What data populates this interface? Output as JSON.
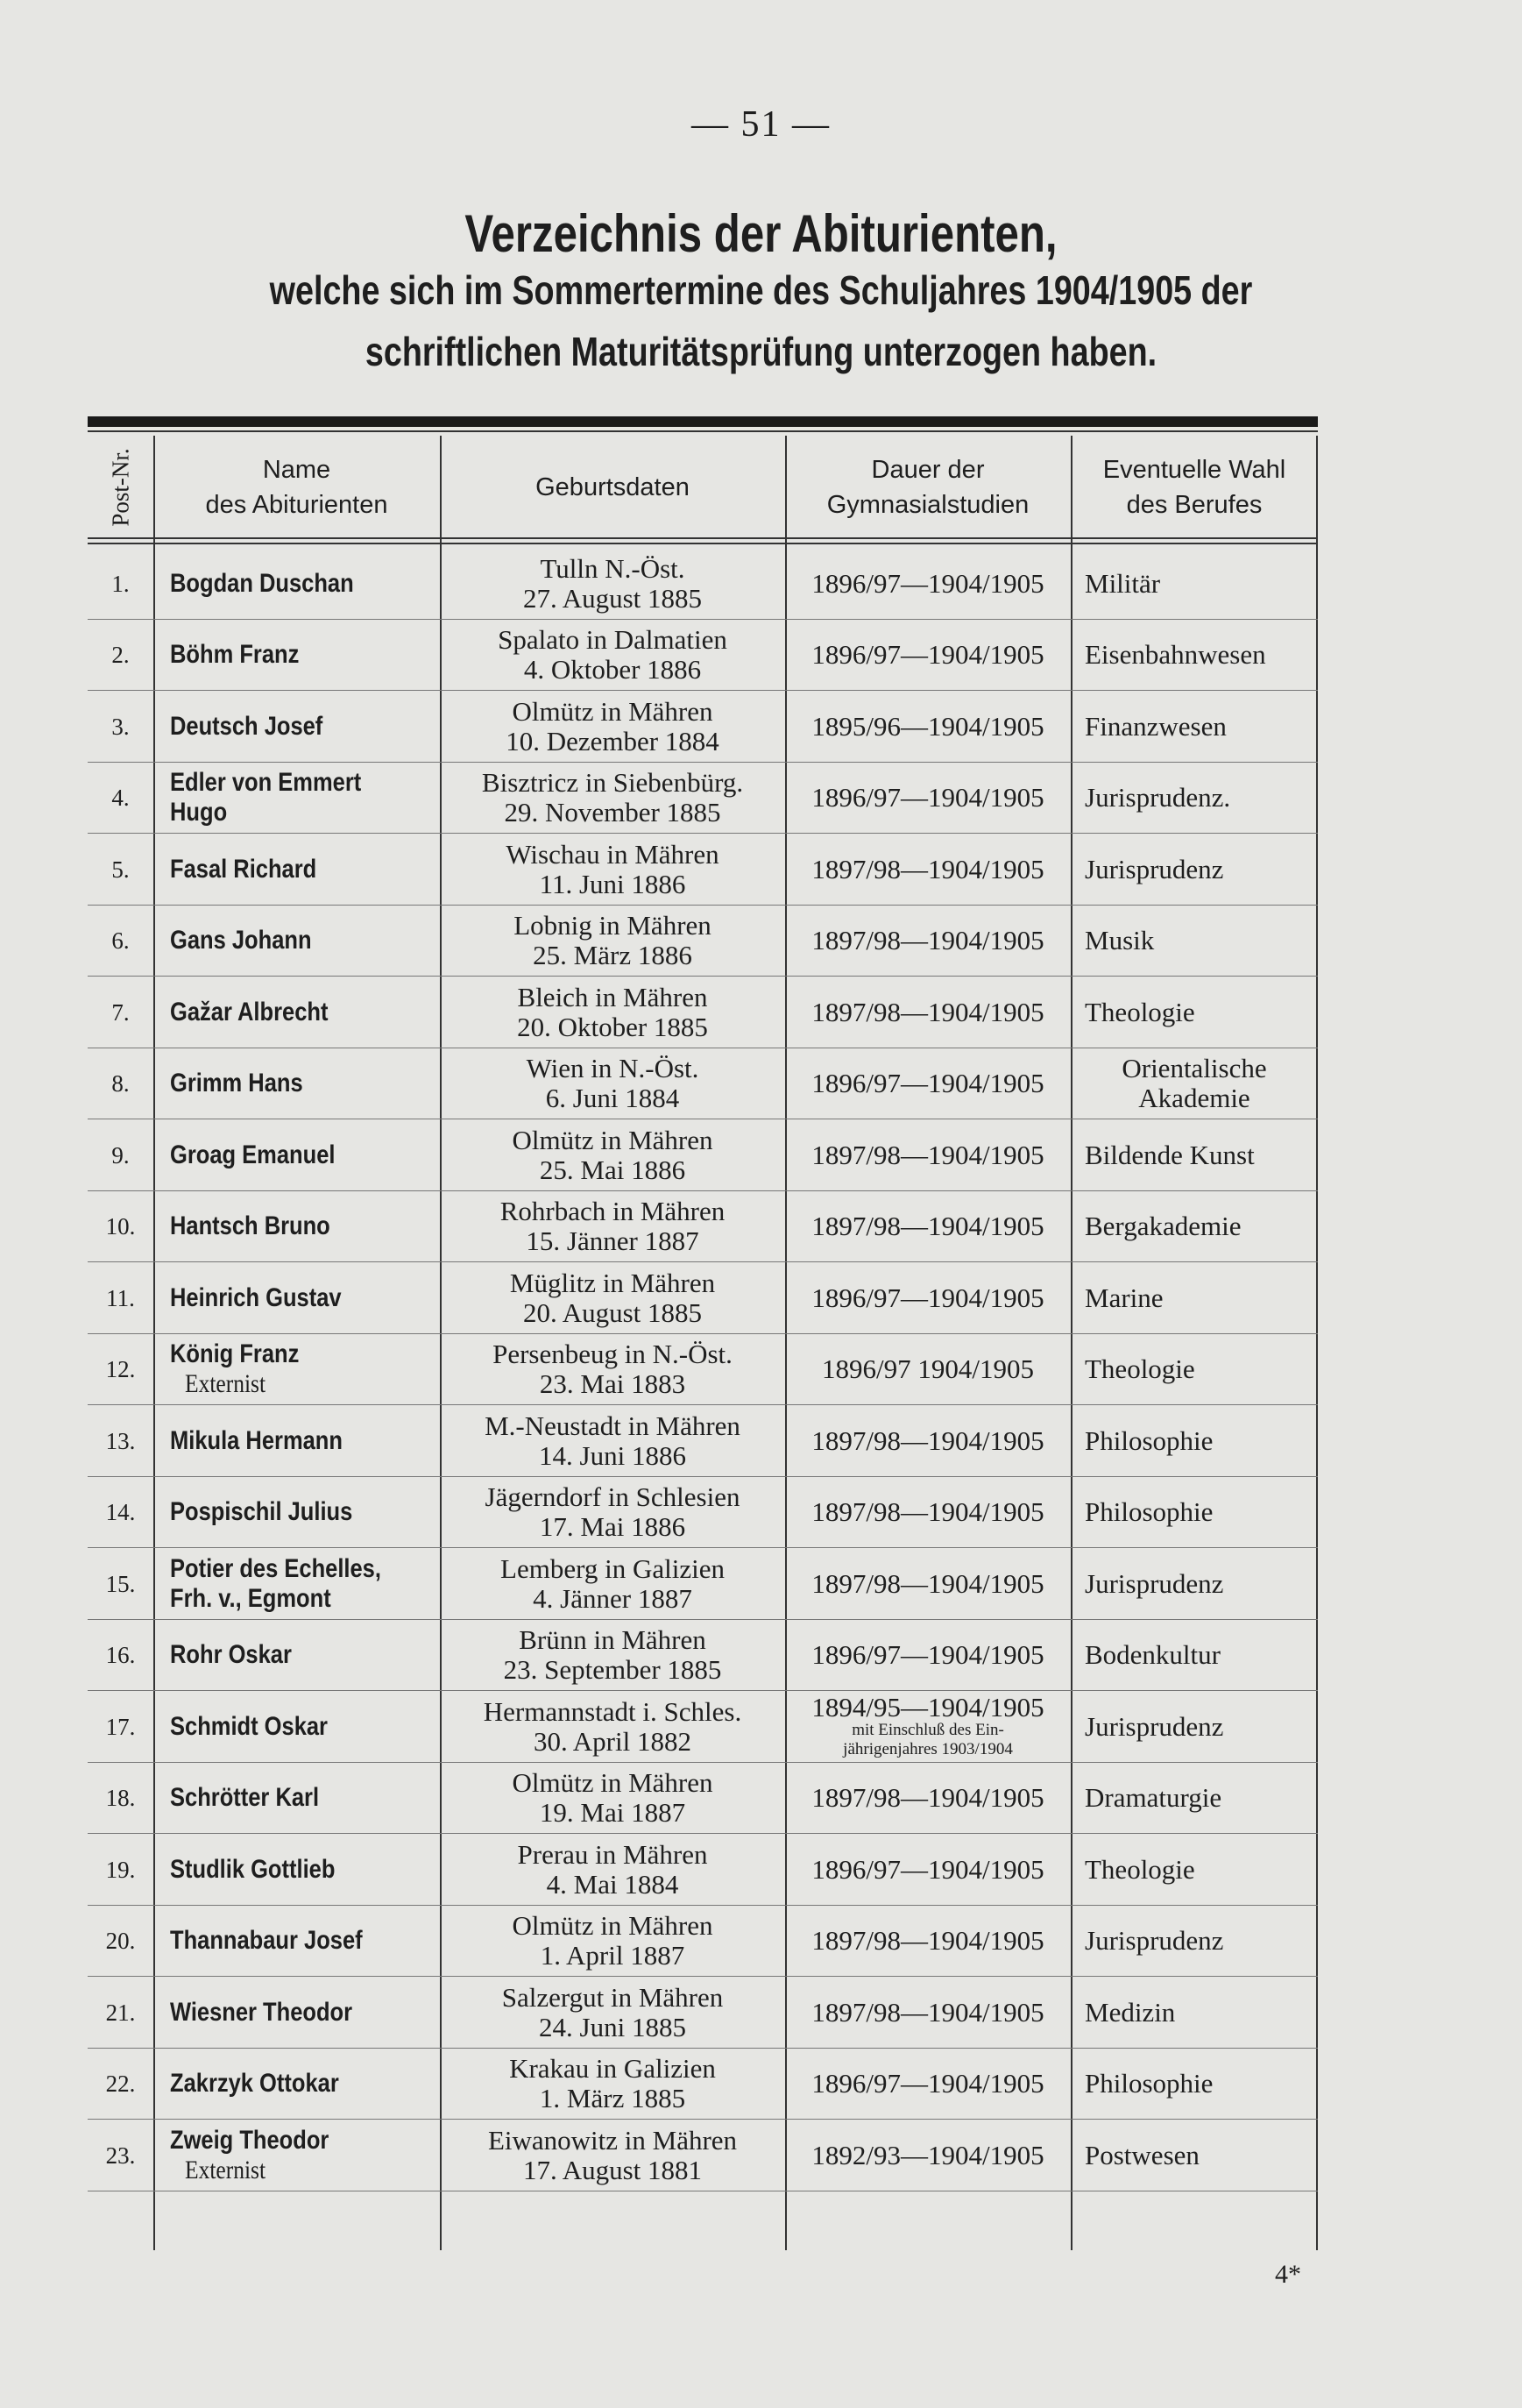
{
  "page_number": "— 51 —",
  "title": "Verzeichnis der Abiturienten,",
  "subtitle_line1": "welche sich im Sommertermine des Schuljahres 1904/1905 der",
  "subtitle_line2": "schriftlichen Maturitätsprüfung unterzogen haben.",
  "columns": {
    "nr": "Post-Nr.",
    "name_l1": "Name",
    "name_l2": "des Abiturienten",
    "geburt": "Geburtsdaten",
    "dauer_l1": "Dauer der",
    "dauer_l2": "Gymnasialstudien",
    "beruf_l1": "Eventuelle Wahl",
    "beruf_l2": "des Berufes"
  },
  "rows": [
    {
      "nr": "1.",
      "name": "Bogdan Duschan",
      "name2": "",
      "place": "Tulln N.-Öst.",
      "date": "27. August 1885",
      "dauer": "1896/97—1904/1905",
      "beruf": "Militär",
      "beruf2": ""
    },
    {
      "nr": "2.",
      "name": "Böhm Franz",
      "name2": "",
      "place": "Spalato in Dalmatien",
      "date": "4. Oktober 1886",
      "dauer": "1896/97—1904/1905",
      "beruf": "Eisenbahnwesen",
      "beruf2": ""
    },
    {
      "nr": "3.",
      "name": "Deutsch Josef",
      "name2": "",
      "place": "Olmütz in Mähren",
      "date": "10. Dezember 1884",
      "dauer": "1895/96—1904/1905",
      "beruf": "Finanzwesen",
      "beruf2": ""
    },
    {
      "nr": "4.",
      "name": "Edler von Emmert",
      "name2": "Hugo",
      "place": "Bisztricz in Siebenbürg.",
      "date": "29. November 1885",
      "dauer": "1896/97—1904/1905",
      "beruf": "Jurisprudenz.",
      "beruf2": ""
    },
    {
      "nr": "5.",
      "name": "Fasal Richard",
      "name2": "",
      "place": "Wischau in Mähren",
      "date": "11. Juni 1886",
      "dauer": "1897/98—1904/1905",
      "beruf": "Jurisprudenz",
      "beruf2": ""
    },
    {
      "nr": "6.",
      "name": "Gans Johann",
      "name2": "",
      "place": "Lobnig in Mähren",
      "date": "25. März 1886",
      "dauer": "1897/98—1904/1905",
      "beruf": "Musik",
      "beruf2": ""
    },
    {
      "nr": "7.",
      "name": "Gažar Albrecht",
      "name2": "",
      "place": "Bleich in Mähren",
      "date": "20. Oktober 1885",
      "dauer": "1897/98—1904/1905",
      "beruf": "Theologie",
      "beruf2": ""
    },
    {
      "nr": "8.",
      "name": "Grimm Hans",
      "name2": "",
      "place": "Wien in N.-Öst.",
      "date": "6. Juni 1884",
      "dauer": "1896/97—1904/1905",
      "beruf": "Orientalische",
      "beruf2": "Akademie"
    },
    {
      "nr": "9.",
      "name": "Groag Emanuel",
      "name2": "",
      "place": "Olmütz in Mähren",
      "date": "25. Mai 1886",
      "dauer": "1897/98—1904/1905",
      "beruf": "Bildende Kunst",
      "beruf2": ""
    },
    {
      "nr": "10.",
      "name": "Hantsch Bruno",
      "name2": "",
      "place": "Rohrbach in Mähren",
      "date": "15. Jänner 1887",
      "dauer": "1897/98—1904/1905",
      "beruf": "Bergakademie",
      "beruf2": ""
    },
    {
      "nr": "11.",
      "name": "Heinrich Gustav",
      "name2": "",
      "place": "Müglitz in Mähren",
      "date": "20. August 1885",
      "dauer": "1896/97—1904/1905",
      "beruf": "Marine",
      "beruf2": ""
    },
    {
      "nr": "12.",
      "name": "König Franz",
      "name2": "Externist",
      "place": "Persenbeug in N.-Öst.",
      "date": "23. Mai 1883",
      "dauer": "1896/97 1904/1905",
      "beruf": "Theologie",
      "beruf2": ""
    },
    {
      "nr": "13.",
      "name": "Mikula Hermann",
      "name2": "",
      "place": "M.-Neustadt in Mähren",
      "date": "14. Juni 1886",
      "dauer": "1897/98—1904/1905",
      "beruf": "Philosophie",
      "beruf2": ""
    },
    {
      "nr": "14.",
      "name": "Pospischil Julius",
      "name2": "",
      "place": "Jägerndorf in Schlesien",
      "date": "17. Mai 1886",
      "dauer": "1897/98—1904/1905",
      "beruf": "Philosophie",
      "beruf2": ""
    },
    {
      "nr": "15.",
      "name": "Potier des Echelles,",
      "name2": "Frh. v., Egmont",
      "place": "Lemberg in Galizien",
      "date": "4. Jänner 1887",
      "dauer": "1897/98—1904/1905",
      "beruf": "Jurisprudenz",
      "beruf2": ""
    },
    {
      "nr": "16.",
      "name": "Rohr Oskar",
      "name2": "",
      "place": "Brünn in Mähren",
      "date": "23. September 1885",
      "dauer": "1896/97—1904/1905",
      "beruf": "Bodenkultur",
      "beruf2": ""
    },
    {
      "nr": "17.",
      "name": "Schmidt Oskar",
      "name2": "",
      "place": "Hermannstadt i. Schles.",
      "date": "30. April 1882",
      "dauer": "1894/95—1904/1905",
      "dauer_note1": "mit Einschluß des Ein-",
      "dauer_note2": "jährigenjahres 1903/1904",
      "beruf": "Jurisprudenz",
      "beruf2": ""
    },
    {
      "nr": "18.",
      "name": "Schrötter Karl",
      "name2": "",
      "place": "Olmütz in Mähren",
      "date": "19. Mai 1887",
      "dauer": "1897/98—1904/1905",
      "beruf": "Dramaturgie",
      "beruf2": ""
    },
    {
      "nr": "19.",
      "name": "Studlik Gottlieb",
      "name2": "",
      "place": "Prerau in Mähren",
      "date": "4. Mai 1884",
      "dauer": "1896/97—1904/1905",
      "beruf": "Theologie",
      "beruf2": ""
    },
    {
      "nr": "20.",
      "name": "Thannabaur Josef",
      "name2": "",
      "place": "Olmütz in Mähren",
      "date": "1. April 1887",
      "dauer": "1897/98—1904/1905",
      "beruf": "Jurisprudenz",
      "beruf2": ""
    },
    {
      "nr": "21.",
      "name": "Wiesner Theodor",
      "name2": "",
      "place": "Salzergut in Mähren",
      "date": "24. Juni 1885",
      "dauer": "1897/98—1904/1905",
      "beruf": "Medizin",
      "beruf2": ""
    },
    {
      "nr": "22.",
      "name": "Zakrzyk Ottokar",
      "name2": "",
      "place": "Krakau in Galizien",
      "date": "1. März 1885",
      "dauer": "1896/97—1904/1905",
      "beruf": "Philosophie",
      "beruf2": ""
    },
    {
      "nr": "23.",
      "name": "Zweig Theodor",
      "name2": "Externist",
      "place": "Eiwanowitz in Mähren",
      "date": "17. August 1881",
      "dauer": "1892/93—1904/1905",
      "beruf": "Postwesen",
      "beruf2": ""
    }
  ],
  "footer_signature": "4*"
}
